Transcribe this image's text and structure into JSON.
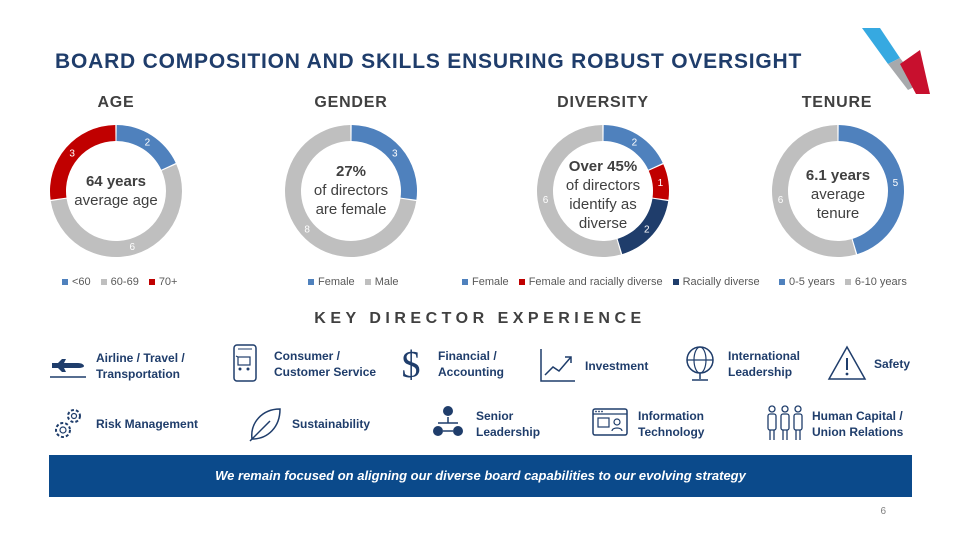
{
  "title": "BOARD COMPOSITION AND SKILLS ENSURING ROBUST OVERSIGHT",
  "colors": {
    "blue": "#4f81bd",
    "grey": "#bfbfbf",
    "red": "#c00000",
    "navy": "#1f3d6b",
    "banner": "#0b4a8b"
  },
  "chart_data": [
    {
      "type": "pie",
      "title": "AGE",
      "categories": [
        "<60",
        "60-69",
        "70+"
      ],
      "values": [
        2,
        6,
        3
      ],
      "colors": [
        "#4f81bd",
        "#bfbfbf",
        "#c00000"
      ],
      "center": [
        "64 years",
        "average age"
      ],
      "legend": "bottom"
    },
    {
      "type": "pie",
      "title": "GENDER",
      "categories": [
        "Female",
        "Male"
      ],
      "values": [
        3,
        8
      ],
      "colors": [
        "#4f81bd",
        "#bfbfbf"
      ],
      "center": [
        "27%",
        "of directors",
        "are female"
      ],
      "legend": "bottom"
    },
    {
      "type": "pie",
      "title": "DIVERSITY",
      "categories": [
        "Female",
        "Female and racially diverse",
        "Racially diverse",
        ""
      ],
      "values": [
        2,
        1,
        2,
        6
      ],
      "colors": [
        "#4f81bd",
        "#c00000",
        "#1f3d6b",
        "#bfbfbf"
      ],
      "center": [
        "Over 45%",
        "of directors",
        "identify as",
        "diverse"
      ],
      "legend": "bottom"
    },
    {
      "type": "pie",
      "title": "TENURE",
      "categories": [
        "0-5 years",
        "6-10 years"
      ],
      "values": [
        5,
        6
      ],
      "colors": [
        "#4f81bd",
        "#bfbfbf"
      ],
      "center": [
        "6.1 years",
        "average",
        "tenure"
      ],
      "legend": "bottom"
    }
  ],
  "experience": {
    "title": "KEY DIRECTOR EXPERIENCE",
    "row1": [
      {
        "icon": "airplane-icon",
        "lines": [
          "Airline / Travel /",
          "Transportation"
        ]
      },
      {
        "icon": "shopping-cart-icon",
        "lines": [
          "Consumer /",
          "Customer Service"
        ]
      },
      {
        "icon": "dollar-icon",
        "lines": [
          "Financial /",
          "Accounting"
        ]
      },
      {
        "icon": "line-chart-icon",
        "lines": [
          "Investment"
        ]
      },
      {
        "icon": "globe-icon",
        "lines": [
          "International",
          "Leadership"
        ]
      },
      {
        "icon": "warning-icon",
        "lines": [
          "Safety"
        ]
      }
    ],
    "row2": [
      {
        "icon": "gears-icon",
        "lines": [
          "Risk Management"
        ]
      },
      {
        "icon": "leaf-icon",
        "lines": [
          "Sustainability"
        ]
      },
      {
        "icon": "org-chart-icon",
        "lines": [
          "Senior",
          "Leadership"
        ]
      },
      {
        "icon": "computer-icon",
        "lines": [
          "Information",
          "Technology"
        ]
      },
      {
        "icon": "people-icon",
        "lines": [
          "Human Capital /",
          "Union Relations"
        ]
      }
    ]
  },
  "banner": "We remain focused on aligning our diverse board capabilities to our evolving strategy",
  "page_number": "6"
}
